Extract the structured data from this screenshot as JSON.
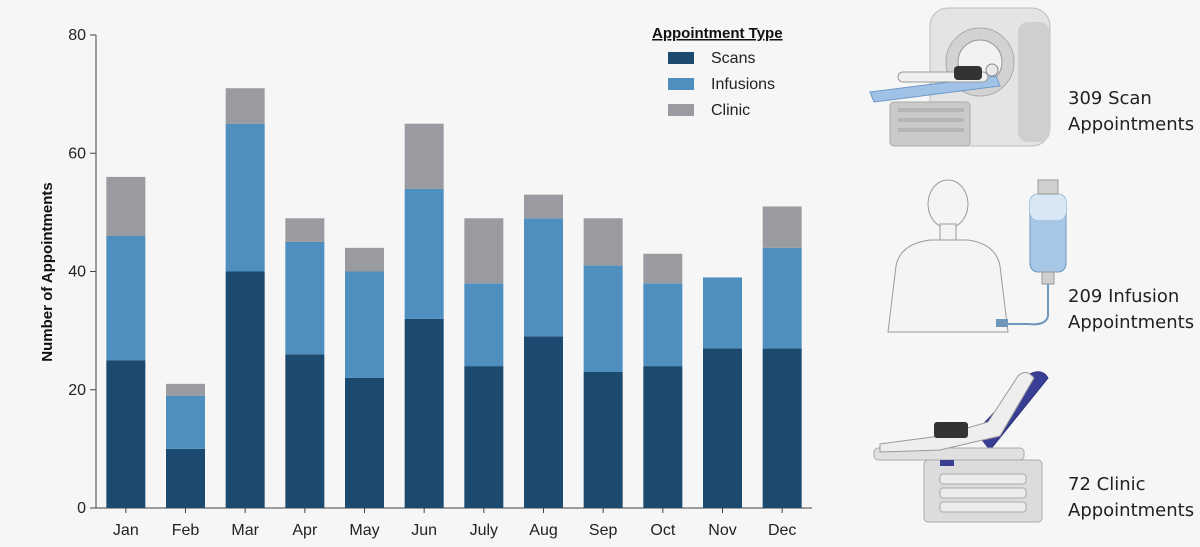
{
  "chart_data": {
    "type": "bar",
    "stacked": true,
    "categories": [
      "Jan",
      "Feb",
      "Mar",
      "Apr",
      "May",
      "Jun",
      "July",
      "Aug",
      "Sep",
      "Oct",
      "Nov",
      "Dec"
    ],
    "series": [
      {
        "name": "Scans",
        "color": "#1c4a6e",
        "values": [
          25,
          10,
          40,
          26,
          22,
          32,
          24,
          29,
          23,
          24,
          27,
          27
        ]
      },
      {
        "name": "Infusions",
        "color": "#4f8fc0",
        "values": [
          21,
          9,
          25,
          19,
          18,
          22,
          14,
          20,
          18,
          14,
          12,
          17
        ]
      },
      {
        "name": "Clinic",
        "color": "#9a9ba0",
        "values": [
          10,
          2,
          6,
          4,
          4,
          11,
          11,
          4,
          8,
          5,
          0,
          7
        ]
      }
    ],
    "ylabel": "Number of Appointments",
    "xlabel": "",
    "ylim": [
      0,
      80
    ],
    "yticks": [
      0,
      20,
      40,
      60,
      80
    ],
    "legend_title": "Appointment Type",
    "legend_position": "top-right"
  },
  "side_panel": {
    "scan": {
      "line1": "309 Scan",
      "line2": "Appointments",
      "icon": "ct-scanner-icon"
    },
    "infusion": {
      "line1": "209 Infusion",
      "line2": "Appointments",
      "icon": "iv-infusion-icon"
    },
    "clinic": {
      "line1": "72 Clinic",
      "line2": "Appointments",
      "icon": "exam-table-icon"
    }
  }
}
